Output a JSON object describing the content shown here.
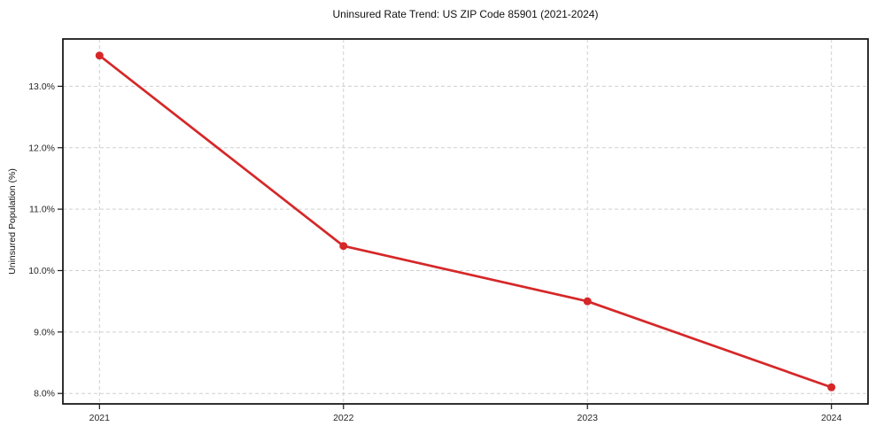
{
  "figure": {
    "background_color": "#ffffff"
  },
  "chart_data": {
    "type": "line",
    "title": "Uninsured Rate Trend: US ZIP Code 85901 (2021-2024)",
    "xlabel": "",
    "ylabel": "Uninsured Population (%)",
    "series": [
      {
        "name": "Uninsured rate",
        "x": [
          2021,
          2022,
          2023,
          2024
        ],
        "values": [
          13.5,
          10.4,
          9.5,
          8.1
        ]
      }
    ],
    "x_tick_labels": [
      "2021",
      "2022",
      "2023",
      "2024"
    ],
    "x_ticks": [
      2021,
      2022,
      2023,
      2024
    ],
    "y_tick_labels": [
      "8.0%",
      "9.0%",
      "10.0%",
      "11.0%",
      "12.0%",
      "13.0%"
    ],
    "y_ticks": [
      8.0,
      9.0,
      10.0,
      11.0,
      12.0,
      13.0
    ],
    "xlim": [
      2020.85,
      2024.15
    ],
    "ylim": [
      7.83,
      13.77
    ],
    "grid": true,
    "legend_position": "none",
    "line_color": "#d62728",
    "marker_color": "#d62728",
    "marker_style": "circle",
    "grid_color": "#cfcfcf",
    "axis_color": "#1a1a1a",
    "tick_label_color": "#262626",
    "title_color": "#111111"
  }
}
